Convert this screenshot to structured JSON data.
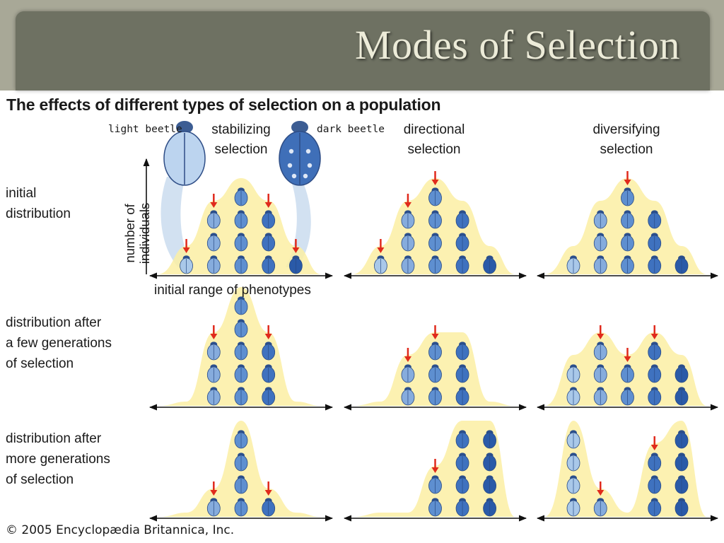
{
  "slide_title": "Modes of Selection",
  "figure_heading": "The effects of different types of selection on a population",
  "column_headers": [
    {
      "line1": "stabilizing",
      "line2": "selection"
    },
    {
      "line1": "directional",
      "line2": "selection"
    },
    {
      "line1": "diversifying",
      "line2": "selection"
    }
  ],
  "beetle_labels": {
    "light": "light beetle",
    "dark": "dark beetle"
  },
  "row_labels": [
    {
      "line1": "initial",
      "line2": "distribution",
      "line3": ""
    },
    {
      "line1": "distribution after",
      "line2": "a few generations",
      "line3": "of selection"
    },
    {
      "line1": "distribution after",
      "line2": "more generations",
      "line3": "of selection"
    }
  ],
  "y_axis_label": {
    "line1": "number of",
    "line2": "individuals"
  },
  "x_axis_label": "initial range of phenotypes",
  "copyright": "© 2005 Encyclopædia Britannica, Inc.",
  "colors": {
    "banner_outer": "#a8a897",
    "banner_inner": "#6e7162",
    "title_text": "#ecebd8",
    "curve_fill": "#fbeea3",
    "arrow_red": "#e02a1c",
    "axis": "#111111",
    "beetle_shades": [
      "#a9c8e9",
      "#86acdd",
      "#5e8fd0",
      "#3f72bf",
      "#2a5aa8"
    ]
  },
  "phenotype_classes": [
    "lightest",
    "light",
    "medium",
    "dark",
    "darkest"
  ],
  "panels": [
    {
      "id": "stabilizing-initial",
      "counts": [
        1,
        3,
        4,
        3,
        1
      ],
      "arrows": [
        0,
        1,
        3,
        4
      ]
    },
    {
      "id": "directional-initial",
      "counts": [
        1,
        3,
        4,
        3,
        1
      ],
      "arrows": [
        0,
        1,
        2
      ]
    },
    {
      "id": "diversifying-initial",
      "counts": [
        1,
        3,
        4,
        3,
        1
      ],
      "arrows": [
        2
      ]
    },
    {
      "id": "stabilizing-few",
      "counts": [
        0,
        3,
        5,
        3,
        0
      ],
      "arrows": [
        1,
        3
      ]
    },
    {
      "id": "directional-few",
      "counts": [
        0,
        2,
        3,
        3,
        0
      ],
      "arrows": [
        1,
        2
      ]
    },
    {
      "id": "diversifying-few",
      "counts": [
        2,
        3,
        2,
        3,
        2
      ],
      "arrows": [
        1,
        2,
        3
      ]
    },
    {
      "id": "stabilizing-more",
      "counts": [
        0,
        1,
        4,
        1,
        0
      ],
      "arrows": [
        1,
        3
      ]
    },
    {
      "id": "directional-more",
      "counts": [
        0,
        0,
        2,
        4,
        4
      ],
      "arrows": [
        2
      ]
    },
    {
      "id": "diversifying-more",
      "counts": [
        4,
        1,
        0,
        3,
        4
      ],
      "arrows": [
        1,
        3
      ]
    }
  ]
}
